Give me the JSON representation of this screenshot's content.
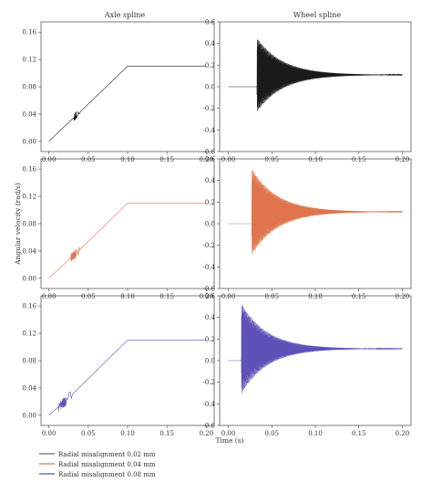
{
  "figure": {
    "column_titles": [
      "Axle spline",
      "Wheel spline"
    ],
    "ylabel": "Angular velocity (rad/s)",
    "xlabel": "Time (s)",
    "legend": [
      {
        "label": "Radial misalignment 0.02 mm",
        "color": "#6b6b6b"
      },
      {
        "label": "Radial misalignment 0.04 mm",
        "color": "#e0744c"
      },
      {
        "label": "Radial misalignment 0.08 mm",
        "color": "#5c52b8"
      }
    ]
  },
  "chart_data": [
    {
      "type": "line",
      "panel": "axle-0.02mm",
      "column_title": "Axle spline",
      "color": "#1a1a1a",
      "x": [
        0,
        0.03,
        0.035,
        0.1,
        0.2
      ],
      "y": [
        0,
        0.033,
        0.038,
        0.11,
        0.11
      ],
      "noise": {
        "start": 0.032,
        "end": 0.04,
        "amplitude": 0.006
      },
      "xlim": [
        -0.01,
        0.21
      ],
      "ylim": [
        -0.015,
        0.175
      ],
      "xticks": [
        "0.00",
        "0.05",
        "0.10",
        "0.15",
        "0.20"
      ],
      "yticks": [
        "0.00",
        "0.04",
        "0.08",
        "0.12",
        "0.16"
      ]
    },
    {
      "type": "line",
      "panel": "wheel-0.02mm",
      "column_title": "Wheel spline",
      "color": "#1a1a1a",
      "baseline_until": 0.033,
      "oscillation": {
        "start": 0.033,
        "end": 0.2,
        "center": 0.11,
        "initial_amplitude": 0.34,
        "final_amplitude": 0.0,
        "shift": 0.07
      },
      "xlim": [
        -0.01,
        0.21
      ],
      "ylim": [
        -0.6,
        0.6
      ],
      "xticks": [
        "0.00",
        "0.05",
        "0.10",
        "0.15",
        "0.20"
      ],
      "yticks": [
        "-0.6",
        "-0.4",
        "-0.2",
        "0.0",
        "0.2",
        "0.4",
        "0.6"
      ]
    },
    {
      "type": "line",
      "panel": "axle-0.04mm",
      "column_title": "",
      "color": "#e0744c",
      "x": [
        0,
        0.028,
        0.034,
        0.1,
        0.2
      ],
      "y": [
        0,
        0.03,
        0.036,
        0.11,
        0.11
      ],
      "noise": {
        "start": 0.028,
        "end": 0.04,
        "amplitude": 0.007
      },
      "xlim": [
        -0.01,
        0.21
      ],
      "ylim": [
        -0.015,
        0.175
      ],
      "xticks": [
        "0.00",
        "0.05",
        "0.10",
        "0.15",
        "0.20"
      ],
      "yticks": [
        "0.00",
        "0.04",
        "0.08",
        "0.12",
        "0.16"
      ]
    },
    {
      "type": "line",
      "panel": "wheel-0.04mm",
      "column_title": "",
      "color": "#e0744c",
      "baseline_until": 0.027,
      "oscillation": {
        "start": 0.027,
        "end": 0.2,
        "center": 0.11,
        "initial_amplitude": 0.4,
        "final_amplitude": 0.0,
        "shift": 0.06
      },
      "xlim": [
        -0.01,
        0.21
      ],
      "ylim": [
        -0.6,
        0.6
      ],
      "xticks": [
        "0.00",
        "0.05",
        "0.10",
        "0.15",
        "0.20"
      ],
      "yticks": [
        "-0.6",
        "-0.4",
        "-0.2",
        "0.0",
        "0.2",
        "0.4",
        "0.6"
      ]
    },
    {
      "type": "line",
      "panel": "axle-0.08mm",
      "column_title": "",
      "color": "#5c52b8",
      "x": [
        0,
        0.015,
        0.022,
        0.1,
        0.2
      ],
      "y": [
        0,
        0.015,
        0.022,
        0.11,
        0.11
      ],
      "noise": {
        "start": 0.012,
        "end": 0.03,
        "amplitude": 0.008
      },
      "xlim": [
        -0.01,
        0.21
      ],
      "ylim": [
        -0.015,
        0.175
      ],
      "xticks": [
        "0.00",
        "0.05",
        "0.10",
        "0.15",
        "0.20"
      ],
      "yticks": [
        "0.00",
        "0.04",
        "0.08",
        "0.12",
        "0.16"
      ]
    },
    {
      "type": "line",
      "panel": "wheel-0.08mm",
      "column_title": "",
      "color": "#5c52b8",
      "baseline_until": 0.015,
      "oscillation": {
        "start": 0.015,
        "end": 0.2,
        "center": 0.11,
        "initial_amplitude": 0.42,
        "final_amplitude": 0.0,
        "shift": 0.05
      },
      "xlim": [
        -0.01,
        0.21
      ],
      "ylim": [
        -0.6,
        0.6
      ],
      "xticks": [
        "0.00",
        "0.05",
        "0.10",
        "0.15",
        "0.20"
      ],
      "yticks": [
        "-0.6",
        "-0.4",
        "-0.2",
        "0.0",
        "0.2",
        "0.4",
        "0.6"
      ]
    }
  ]
}
